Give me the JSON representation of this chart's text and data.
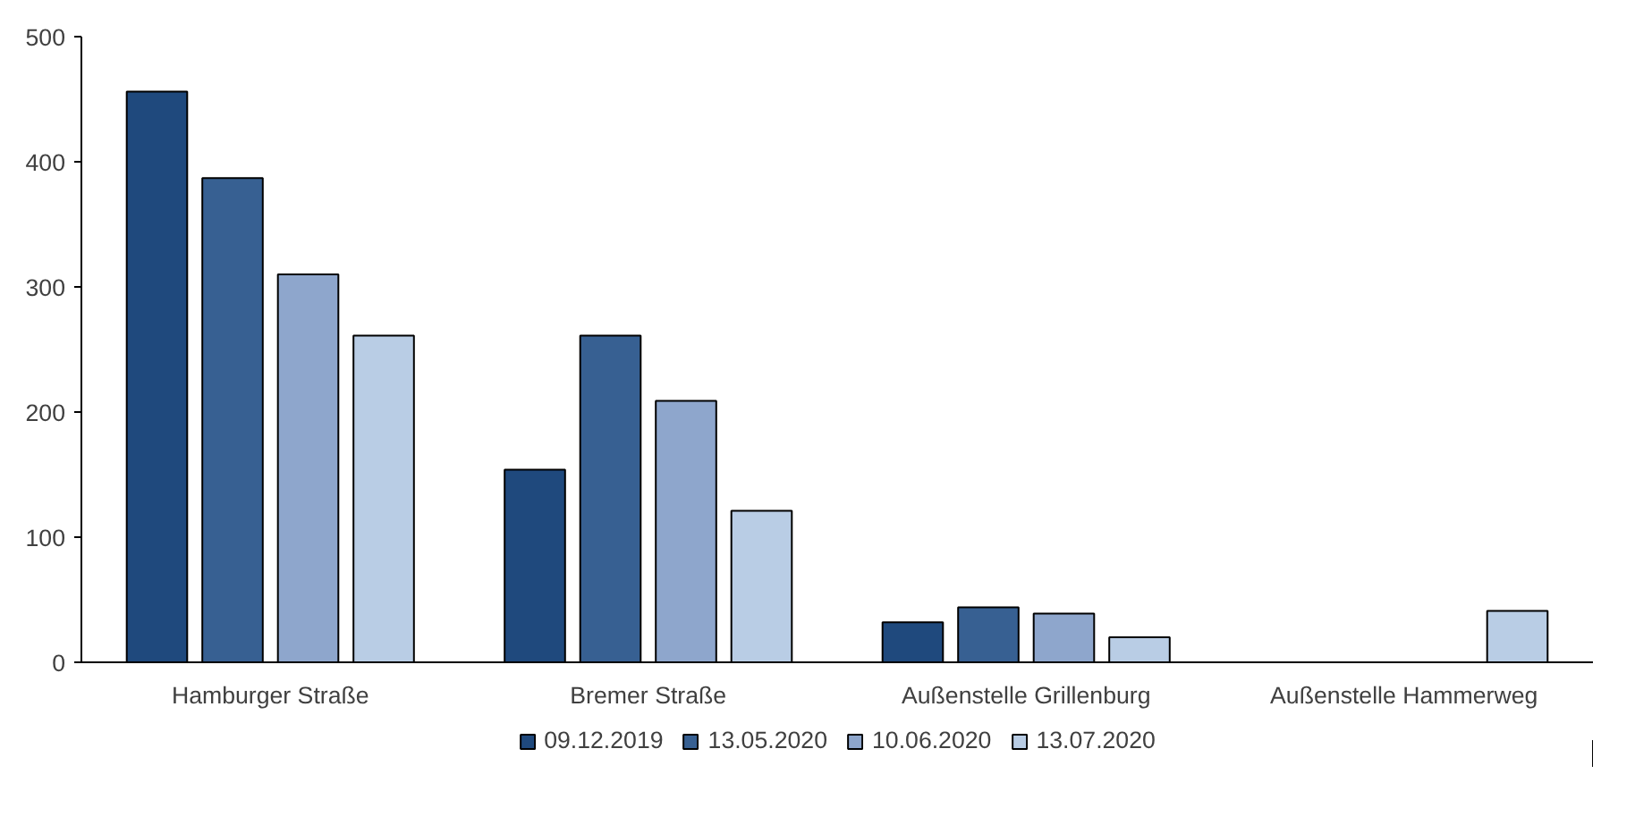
{
  "chart_data": {
    "type": "bar",
    "categories": [
      "Hamburger Straße",
      "Bremer Straße",
      "Außenstelle Grillenburg",
      "Außenstelle Hammerweg"
    ],
    "series": [
      {
        "name": "09.12.2019",
        "color": "#1f497d",
        "values": [
          456,
          154,
          32,
          null
        ]
      },
      {
        "name": "13.05.2020",
        "color": "#376092",
        "values": [
          387,
          261,
          44,
          null
        ]
      },
      {
        "name": "10.06.2020",
        "color": "#8ea6cc",
        "values": [
          310,
          209,
          39,
          null
        ]
      },
      {
        "name": "13.07.2020",
        "color": "#b9cde5",
        "values": [
          261,
          121,
          20,
          41
        ]
      }
    ],
    "ylim": [
      0,
      500
    ],
    "yticks": [
      0,
      100,
      200,
      300,
      400,
      500
    ],
    "grid": false,
    "legend": "bottom"
  }
}
